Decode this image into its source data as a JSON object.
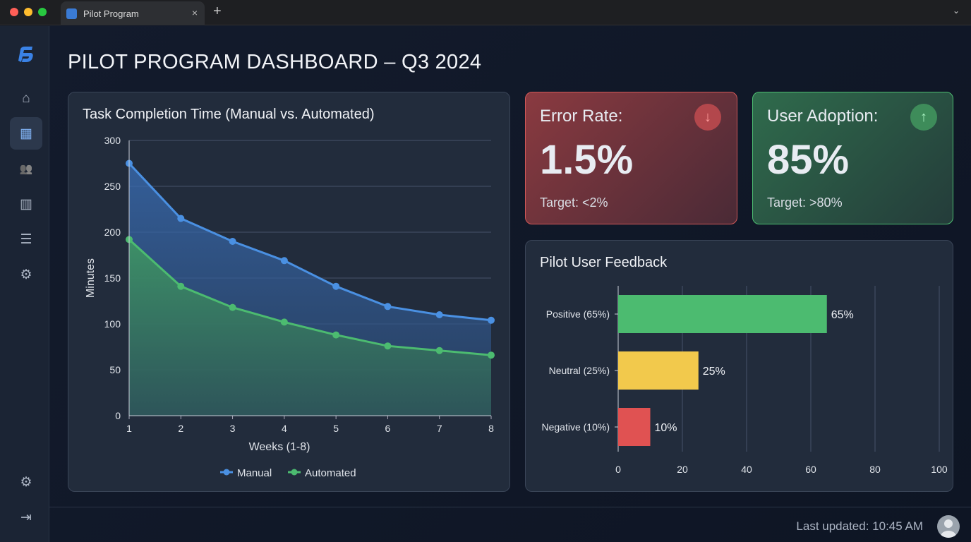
{
  "browser": {
    "tab_title": "Pilot Program",
    "close": "×",
    "new_tab": "+",
    "menu": "⌄"
  },
  "sidebar": {
    "items": [
      {
        "icon": "home-icon",
        "glyph": "⌂"
      },
      {
        "icon": "dashboard-icon",
        "glyph": "▦"
      },
      {
        "icon": "users-icon",
        "glyph": "👥"
      },
      {
        "icon": "reports-icon",
        "glyph": "▥"
      },
      {
        "icon": "list-icon",
        "glyph": "☰"
      },
      {
        "icon": "settings-icon",
        "glyph": "⚙"
      }
    ],
    "bottom": [
      {
        "icon": "settings-icon",
        "glyph": "⚙"
      },
      {
        "icon": "logout-icon",
        "glyph": "⇥"
      }
    ]
  },
  "page": {
    "title": "PILOT PROGRAM DASHBOARD – Q3 2024"
  },
  "kpis": {
    "error": {
      "label": "Error Rate:",
      "value": "1.5%",
      "target": "Target: <2%",
      "icon": "arrow-down-icon",
      "glyph": "↓",
      "color": "#e05252"
    },
    "adoption": {
      "label": "User Adoption:",
      "value": "85%",
      "target": "Target: >80%",
      "icon": "arrow-up-icon",
      "glyph": "↑",
      "color": "#4cbb70"
    }
  },
  "chart_data": [
    {
      "type": "area",
      "title": "Task Completion Time (Manual vs. Automated)",
      "xlabel": "Weeks (1-8)",
      "ylabel": "Minutes",
      "x": [
        1,
        2,
        3,
        4,
        5,
        6,
        7,
        8
      ],
      "ylim": [
        0,
        300
      ],
      "yticks": [
        0,
        50,
        100,
        150,
        200,
        250,
        300
      ],
      "grid": true,
      "legend": "bottom",
      "series": [
        {
          "name": "Manual",
          "color": "#4a90e2",
          "values": [
            275,
            215,
            190,
            169,
            141,
            119,
            110,
            104
          ]
        },
        {
          "name": "Automated",
          "color": "#4cbb70",
          "values": [
            192,
            141,
            118,
            102,
            88,
            76,
            71,
            66
          ]
        }
      ]
    },
    {
      "type": "bar",
      "orientation": "horizontal",
      "title": "Pilot User Feedback",
      "xlim": [
        0,
        100
      ],
      "xticks": [
        0,
        20,
        40,
        60,
        80,
        100
      ],
      "grid": true,
      "categories": [
        "Positive (65%)",
        "Neutral (25%)",
        "Negative (10%)"
      ],
      "values": [
        65,
        25,
        10
      ],
      "data_labels": [
        "65%",
        "25%",
        "10%"
      ],
      "colors": [
        "#4cbb70",
        "#f2c94c",
        "#e05252"
      ]
    }
  ],
  "footer": {
    "last_updated": "Last updated: 10:45 AM"
  }
}
